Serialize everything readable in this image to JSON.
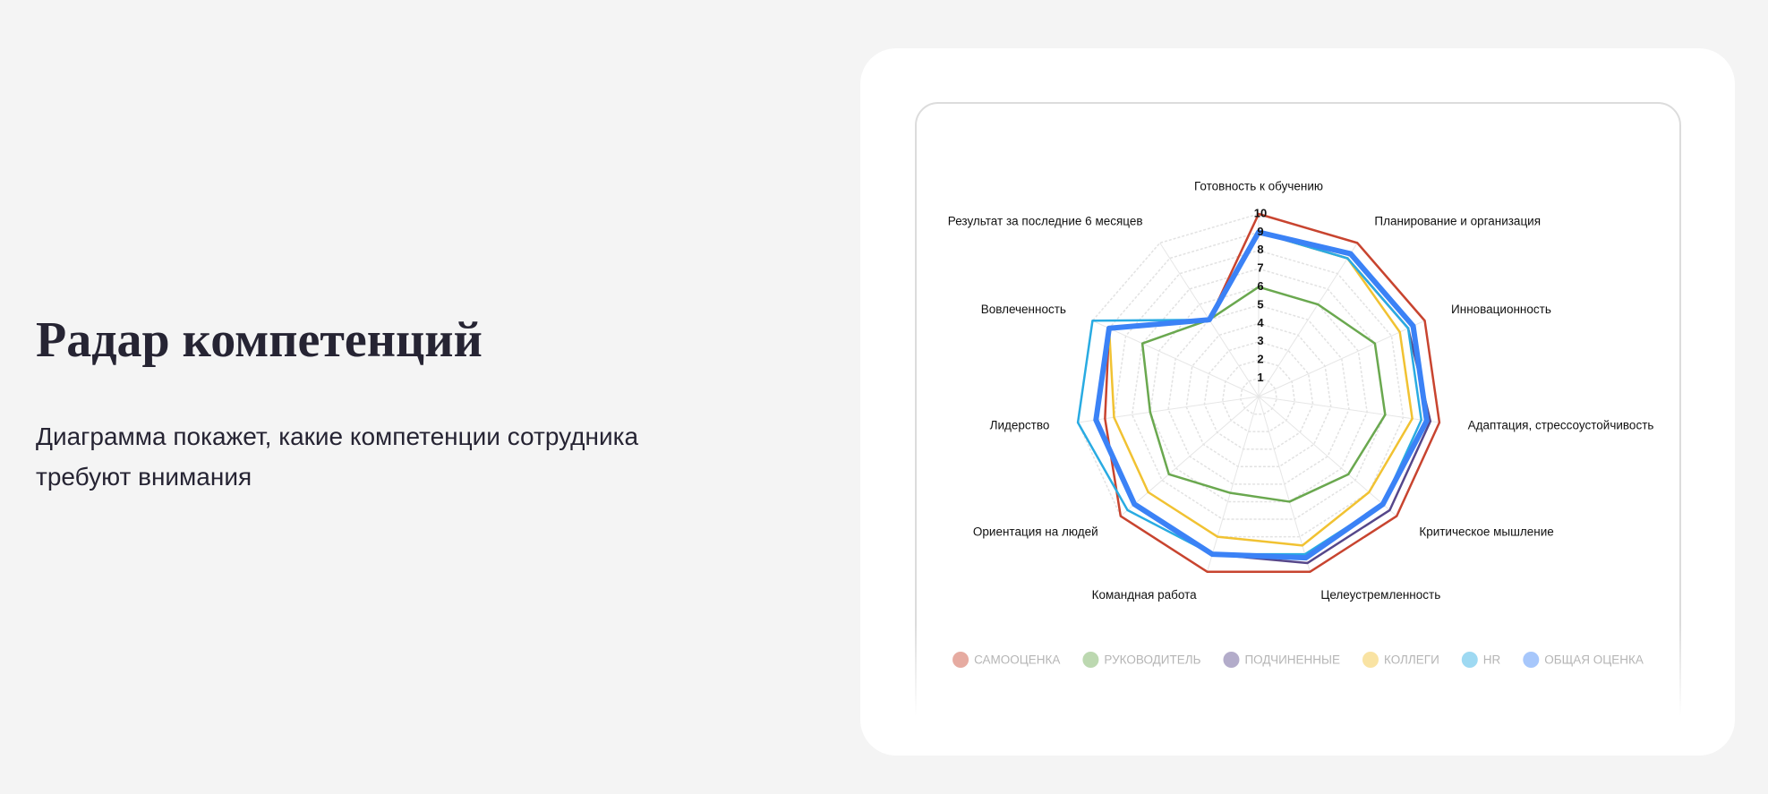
{
  "header": {
    "title": "Радар компетенций",
    "description_lines": [
      "Диаграмма покажет, какие компетенции сотрудника",
      "требуют внимания"
    ]
  },
  "chart_data": {
    "type": "radar",
    "categories": [
      "Готовность к обучению",
      "Планирование и организация",
      "Инновационность",
      "Адаптация, стрессоустойчивость",
      "Критическое мышление",
      "Целеустремленность",
      "Командная работа",
      "Ориентация на людей",
      "Лидерство",
      "Вовлеченность",
      "Результат за последние 6 месяцев"
    ],
    "rlim": [
      0,
      10
    ],
    "rticks": [
      1,
      2,
      3,
      4,
      5,
      6,
      7,
      8,
      9,
      10
    ],
    "series": [
      {
        "name": "САМООЦЕНКА",
        "color": "#c8442f",
        "values": [
          10,
          10,
          10,
          10,
          10,
          10,
          10,
          10,
          8.5,
          9,
          5
        ]
      },
      {
        "name": "РУКОВОДИТЕЛЬ",
        "color": "#6aa84f",
        "values": [
          6,
          6,
          7,
          7,
          6.5,
          6,
          5.5,
          6.5,
          6,
          7,
          5
        ]
      },
      {
        "name": "ПОДЧИНЕННЫЕ",
        "color": "#56478a",
        "values": [
          9,
          9,
          9,
          9.5,
          9.5,
          9.5,
          9,
          9,
          9,
          9,
          5
        ]
      },
      {
        "name": "КОЛЛЕГИ",
        "color": "#f1c232",
        "values": [
          9,
          9,
          8.5,
          8.5,
          8,
          8.5,
          8,
          8,
          8,
          9,
          5
        ]
      },
      {
        "name": "HR",
        "color": "#29abe2",
        "values": [
          9,
          9,
          9,
          9,
          9,
          9,
          9,
          9.5,
          10,
          10,
          5
        ]
      },
      {
        "name": "ОБЩАЯ ОЦЕНКА",
        "color": "#3b82f6",
        "values": [
          9,
          9.3,
          9.3,
          9.3,
          9,
          9.2,
          9,
          9,
          9,
          9,
          5
        ]
      }
    ]
  }
}
